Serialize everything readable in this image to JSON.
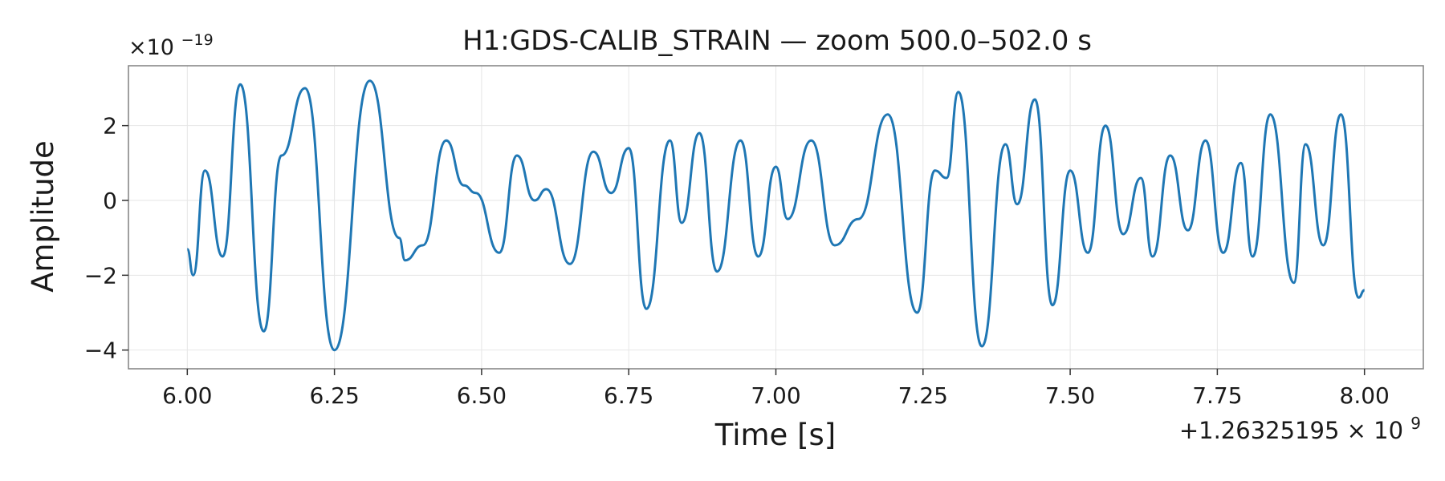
{
  "chart_data": {
    "type": "line",
    "title": "H1:GDS-CALIB_STRAIN — zoom 500.0–502.0 s",
    "xlabel": "Time [s]",
    "ylabel": "Amplitude",
    "y_scale_label": "×10",
    "y_scale_exponent": "−19",
    "x_offset_label": "+1.26325195 × 10",
    "x_offset_exponent": "9",
    "xlim": [
      5.9,
      8.1
    ],
    "ylim": [
      -4.5,
      3.6
    ],
    "x_ticks": [
      6.0,
      6.25,
      6.5,
      6.75,
      7.0,
      7.25,
      7.5,
      7.75,
      8.0
    ],
    "x_tick_labels": [
      "6.00",
      "6.25",
      "6.50",
      "6.75",
      "7.00",
      "7.25",
      "7.50",
      "7.75",
      "8.00"
    ],
    "y_ticks": [
      2,
      0,
      -2,
      -4
    ],
    "y_tick_labels": [
      "2",
      "0",
      "−2",
      "−4"
    ],
    "grid": true,
    "series": [
      {
        "color": "#1f77b4",
        "points": [
          [
            6.0,
            -1.3
          ],
          [
            6.01,
            -2.0
          ],
          [
            6.03,
            0.8
          ],
          [
            6.06,
            -1.5
          ],
          [
            6.09,
            3.1
          ],
          [
            6.13,
            -3.5
          ],
          [
            6.16,
            1.2
          ],
          [
            6.2,
            3.0
          ],
          [
            6.25,
            -4.0
          ],
          [
            6.31,
            3.2
          ],
          [
            6.36,
            -1.0
          ],
          [
            6.37,
            -1.6
          ],
          [
            6.4,
            -1.2
          ],
          [
            6.44,
            1.6
          ],
          [
            6.47,
            0.4
          ],
          [
            6.49,
            0.2
          ],
          [
            6.53,
            -1.4
          ],
          [
            6.56,
            1.2
          ],
          [
            6.59,
            0.0
          ],
          [
            6.61,
            0.3
          ],
          [
            6.65,
            -1.7
          ],
          [
            6.69,
            1.3
          ],
          [
            6.72,
            0.2
          ],
          [
            6.75,
            1.4
          ],
          [
            6.78,
            -2.9
          ],
          [
            6.82,
            1.6
          ],
          [
            6.84,
            -0.6
          ],
          [
            6.87,
            1.8
          ],
          [
            6.9,
            -1.9
          ],
          [
            6.94,
            1.6
          ],
          [
            6.97,
            -1.5
          ],
          [
            7.0,
            0.9
          ],
          [
            7.02,
            -0.5
          ],
          [
            7.06,
            1.6
          ],
          [
            7.1,
            -1.2
          ],
          [
            7.14,
            -0.5
          ],
          [
            7.19,
            2.3
          ],
          [
            7.24,
            -3.0
          ],
          [
            7.27,
            0.8
          ],
          [
            7.29,
            0.6
          ],
          [
            7.31,
            2.9
          ],
          [
            7.35,
            -3.9
          ],
          [
            7.39,
            1.5
          ],
          [
            7.41,
            -0.1
          ],
          [
            7.44,
            2.7
          ],
          [
            7.47,
            -2.8
          ],
          [
            7.5,
            0.8
          ],
          [
            7.53,
            -1.4
          ],
          [
            7.56,
            2.0
          ],
          [
            7.59,
            -0.9
          ],
          [
            7.62,
            0.6
          ],
          [
            7.64,
            -1.5
          ],
          [
            7.67,
            1.2
          ],
          [
            7.7,
            -0.8
          ],
          [
            7.73,
            1.6
          ],
          [
            7.76,
            -1.4
          ],
          [
            7.79,
            1.0
          ],
          [
            7.81,
            -1.5
          ],
          [
            7.84,
            2.3
          ],
          [
            7.88,
            -2.2
          ],
          [
            7.9,
            1.5
          ],
          [
            7.93,
            -1.2
          ],
          [
            7.96,
            2.3
          ],
          [
            7.99,
            -2.6
          ],
          [
            8.0,
            -2.4
          ]
        ]
      }
    ]
  }
}
